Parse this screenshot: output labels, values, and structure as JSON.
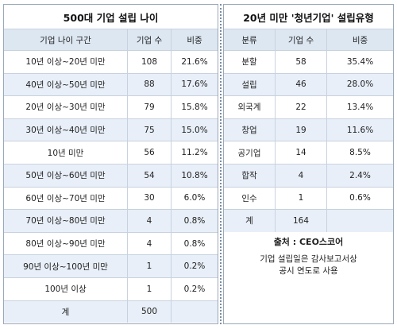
{
  "left": {
    "title": "500대 기업 설립 나이",
    "header": [
      "기업 나이 구간",
      "기업 수",
      "비중"
    ],
    "rows": [
      [
        "10년 이상~20년 미만",
        "108",
        "21.6%"
      ],
      [
        "40년 이상~50년 미만",
        "88",
        "17.6%"
      ],
      [
        "20년 이상~30년 미만",
        "79",
        "15.8%"
      ],
      [
        "30년 이상~40년 미만",
        "75",
        "15.0%"
      ],
      [
        "10년 미만",
        "56",
        "11.2%"
      ],
      [
        "50년 이상~60년 미만",
        "54",
        "10.8%"
      ],
      [
        "60년 이상~70년 미만",
        "30",
        "6.0%"
      ],
      [
        "70년 이상~80년 미만",
        "4",
        "0.8%"
      ],
      [
        "80년 이상~90년 미만",
        "4",
        "0.8%"
      ],
      [
        "90년 이상~100년 미만",
        "1",
        "0.2%"
      ],
      [
        "100년 이상",
        "1",
        "0.2%"
      ],
      [
        "계",
        "500",
        ""
      ]
    ]
  },
  "right": {
    "title": "20년 미만 '청년기업' 설립유형",
    "header": [
      "분류",
      "기업 수",
      "비중"
    ],
    "rows": [
      [
        "분할",
        "58",
        "35.4%"
      ],
      [
        "설립",
        "46",
        "28.0%"
      ],
      [
        "외국계",
        "22",
        "13.4%"
      ],
      [
        "창업",
        "19",
        "11.6%"
      ],
      [
        "공기업",
        "14",
        "8.5%"
      ],
      [
        "합작",
        "4",
        "2.4%"
      ],
      [
        "인수",
        "1",
        "0.6%"
      ],
      [
        "계",
        "164",
        ""
      ]
    ],
    "note": {
      "source": "출처 : CEO스코어",
      "lines": [
        "기업 설립일은 감사보고서상",
        "공시 연도로 사용"
      ]
    }
  }
}
